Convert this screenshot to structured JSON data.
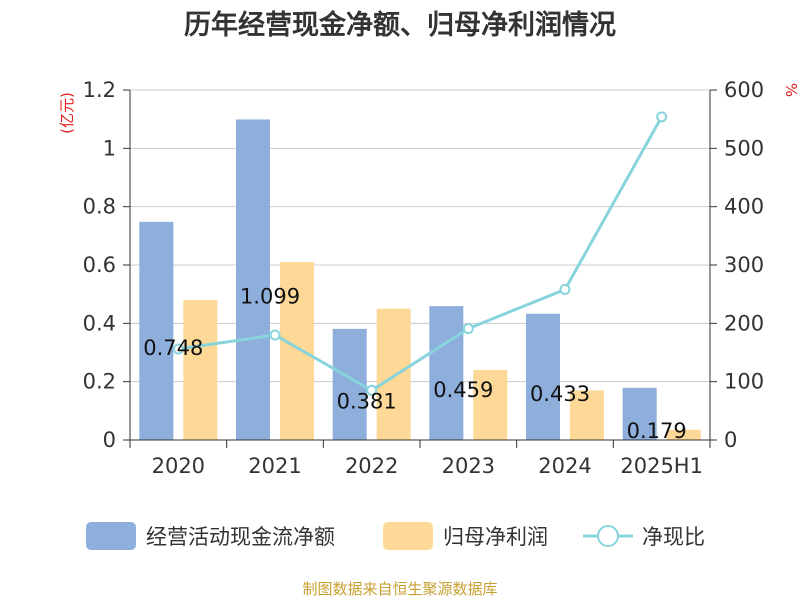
{
  "chart_data": {
    "type": "bar",
    "title": "历年经营现金净额、归母净利润情况",
    "categories": [
      "2020",
      "2021",
      "2022",
      "2023",
      "2024",
      "2025H1"
    ],
    "series": [
      {
        "name": "经营活动现金流净额",
        "type": "bar",
        "axis": "left",
        "color": "#8eaedc",
        "values": [
          0.748,
          1.099,
          0.381,
          0.459,
          0.433,
          0.179
        ]
      },
      {
        "name": "归母净利润",
        "type": "bar",
        "axis": "left",
        "color": "#fdd896",
        "values": [
          0.48,
          0.61,
          0.45,
          0.24,
          0.17,
          0.035
        ]
      },
      {
        "name": "净现比",
        "type": "line",
        "axis": "right",
        "color": "#88d4dc",
        "values": [
          156,
          180,
          85,
          191,
          258,
          554
        ]
      }
    ],
    "data_labels": [
      "0.748",
      "1.099",
      "0.381",
      "0.459",
      "0.433",
      "0.179"
    ],
    "y_left": {
      "unit": "(亿元)",
      "ylim": [
        0,
        1.2
      ],
      "ticks": [
        "0",
        "0.2",
        "0.4",
        "0.6",
        "0.8",
        "1",
        "1.2"
      ]
    },
    "y_right": {
      "unit": "%",
      "ylim": [
        0,
        600
      ],
      "ticks": [
        "0",
        "100",
        "200",
        "300",
        "400",
        "500",
        "600"
      ]
    },
    "grid": true,
    "legend_position": "bottom"
  },
  "source": "制图数据来自恒生聚源数据库"
}
